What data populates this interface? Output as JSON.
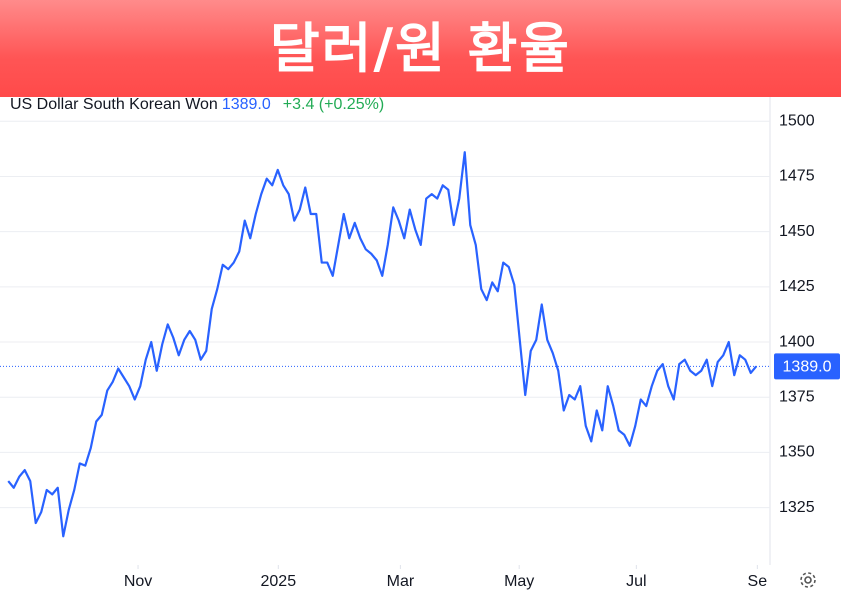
{
  "chart_data": {
    "type": "line",
    "title": "달러/원 환율",
    "series": [
      {
        "name": "US Dollar South Korean Won",
        "color": "#2962ff",
        "values": [
          1337,
          1334,
          1339,
          1342,
          1337,
          1318,
          1323,
          1333,
          1331,
          1334,
          1312,
          1324,
          1333,
          1345,
          1344,
          1352,
          1364,
          1367,
          1378,
          1382,
          1388,
          1384,
          1380,
          1374,
          1380,
          1392,
          1400,
          1387,
          1399,
          1408,
          1402,
          1394,
          1401,
          1405,
          1401,
          1392,
          1396,
          1415,
          1424,
          1435,
          1433,
          1436,
          1441,
          1455,
          1447,
          1458,
          1467,
          1474,
          1471,
          1478,
          1471,
          1467,
          1455,
          1460,
          1470,
          1458,
          1458,
          1436,
          1436,
          1430,
          1444,
          1458,
          1447,
          1454,
          1447,
          1442,
          1440,
          1437,
          1430,
          1444,
          1461,
          1455,
          1447,
          1460,
          1451,
          1444,
          1465,
          1467,
          1465,
          1471,
          1469,
          1453,
          1465,
          1486,
          1453,
          1444,
          1424,
          1419,
          1427,
          1423,
          1436,
          1434,
          1426,
          1401,
          1376,
          1396,
          1401,
          1417,
          1401,
          1395,
          1387,
          1369,
          1376,
          1374,
          1380,
          1362,
          1355,
          1369,
          1360,
          1380,
          1371,
          1360,
          1358,
          1353,
          1362,
          1374,
          1371,
          1380,
          1387,
          1390,
          1380,
          1374,
          1390,
          1392,
          1387,
          1385,
          1387,
          1392,
          1380,
          1391,
          1394,
          1400,
          1385,
          1394,
          1392,
          1386,
          1389
        ]
      }
    ],
    "last_price": {
      "value": 1389.0,
      "label": "1389.0"
    },
    "change": "+3.4 (+0.25%)",
    "xlim": [
      -1.5,
      138.5
    ],
    "xticks": [
      {
        "value": 23.6,
        "label": "Nov"
      },
      {
        "value": 49.1,
        "label": "2025"
      },
      {
        "value": 71.3,
        "label": "Mar"
      },
      {
        "value": 92.9,
        "label": "May"
      },
      {
        "value": 114.2,
        "label": "Jul"
      },
      {
        "value": 136.2,
        "label": "Se"
      }
    ],
    "ylim": [
      1299,
      1511
    ],
    "yticks": [
      1325,
      1350,
      1375,
      1400,
      1425,
      1450,
      1475,
      1500
    ],
    "grid": true
  }
}
